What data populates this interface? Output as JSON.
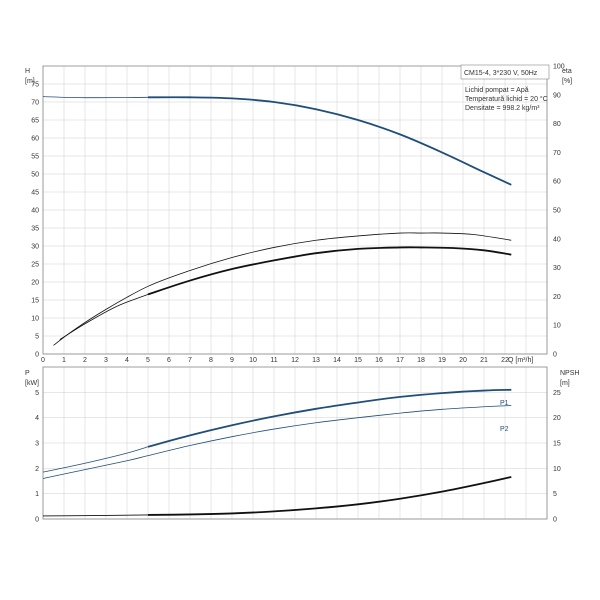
{
  "colors": {
    "blue": "#1f4e79",
    "black": "#111111",
    "grid": "#cfcfcf",
    "frame": "#888888"
  },
  "chart_data": [
    {
      "type": "line",
      "panel": "top",
      "axes": {
        "x_label": "Q [m³/h]",
        "y_left_label": [
          "H",
          "[m]"
        ],
        "y_right_label": [
          "eta",
          "[%]"
        ],
        "xlim": [
          0,
          24
        ],
        "ylim_left": [
          0,
          80
        ],
        "ylim_right": [
          0,
          100
        ],
        "x_ticks": [
          0,
          1,
          2,
          3,
          4,
          5,
          6,
          7,
          8,
          9,
          10,
          11,
          12,
          13,
          14,
          15,
          16,
          17,
          18,
          19,
          20,
          21,
          22
        ],
        "y_left_ticks": [
          0,
          5,
          10,
          15,
          20,
          25,
          30,
          35,
          40,
          45,
          50,
          55,
          60,
          65,
          70,
          75
        ],
        "y_right_ticks": [
          0,
          10,
          20,
          30,
          40,
          50,
          60,
          70,
          80,
          90,
          100
        ],
        "grid": true
      },
      "info_box": {
        "title": "CM15-4, 3*230 V, 50Hz",
        "lines": [
          "Lichid pompat = Apă",
          "Temperatură lichid = 20 °C",
          "Densitate = 998.2 kg/m³"
        ]
      },
      "series": [
        {
          "axis": "left",
          "color": "#1f4e79",
          "thin_until": 5,
          "points": [
            [
              0,
              71.5
            ],
            [
              2,
              71.2
            ],
            [
              5,
              71.3
            ],
            [
              7,
              71.3
            ],
            [
              9,
              71
            ],
            [
              11,
              70
            ],
            [
              13,
              68
            ],
            [
              15,
              65
            ],
            [
              17,
              61
            ],
            [
              19,
              56
            ],
            [
              21,
              50.5
            ],
            [
              22.3,
              47
            ]
          ]
        },
        {
          "axis": "right",
          "color": "#111111",
          "thin_until": 5,
          "points": [
            [
              0.8,
              5
            ],
            [
              2,
              10.5
            ],
            [
              3.5,
              16.5
            ],
            [
              5,
              20.7
            ],
            [
              7,
              25.5
            ],
            [
              9,
              29.5
            ],
            [
              11,
              32.5
            ],
            [
              13,
              35
            ],
            [
              15,
              36.5
            ],
            [
              17,
              37
            ],
            [
              18,
              37
            ],
            [
              19.5,
              36.8
            ],
            [
              21,
              36
            ],
            [
              22.3,
              34.5
            ]
          ]
        },
        {
          "axis": "right",
          "color": "#111111",
          "thin_until": 22.3,
          "points": [
            [
              0.5,
              3
            ],
            [
              1.5,
              8.5
            ],
            [
              3,
              15.5
            ],
            [
              5,
              23.5
            ],
            [
              7,
              29
            ],
            [
              9,
              33.5
            ],
            [
              11,
              37
            ],
            [
              13,
              39.5
            ],
            [
              15,
              41
            ],
            [
              17,
              42
            ],
            [
              18,
              42
            ],
            [
              19,
              42
            ],
            [
              20.5,
              41.5
            ],
            [
              22.3,
              39.5
            ]
          ]
        }
      ]
    },
    {
      "type": "line",
      "panel": "bottom",
      "axes": {
        "y_left_label": [
          "P",
          "[kW]"
        ],
        "y_right_label": [
          "NPSH",
          "[m]"
        ],
        "xlim": [
          0,
          24
        ],
        "ylim_left": [
          0,
          6
        ],
        "ylim_right": [
          0,
          30
        ],
        "y_left_ticks": [
          0,
          1,
          2,
          3,
          4,
          5
        ],
        "y_right_ticks": [
          0,
          5,
          10,
          15,
          20,
          25
        ],
        "grid": true
      },
      "series": [
        {
          "name": "P1",
          "axis": "left",
          "color": "#1f4e79",
          "thin_until": 5,
          "points": [
            [
              0,
              1.85
            ],
            [
              2,
              2.2
            ],
            [
              4,
              2.6
            ],
            [
              5,
              2.85
            ],
            [
              7,
              3.3
            ],
            [
              9,
              3.7
            ],
            [
              11,
              4.05
            ],
            [
              13,
              4.35
            ],
            [
              15,
              4.6
            ],
            [
              17,
              4.82
            ],
            [
              19,
              4.97
            ],
            [
              21,
              5.07
            ],
            [
              22.3,
              5.1
            ]
          ]
        },
        {
          "name": "P2",
          "axis": "left",
          "color": "#1f4e79",
          "thin_until": 22.3,
          "points": [
            [
              0,
              1.6
            ],
            [
              2,
              1.95
            ],
            [
              4,
              2.3
            ],
            [
              5,
              2.5
            ],
            [
              7,
              2.9
            ],
            [
              9,
              3.25
            ],
            [
              11,
              3.55
            ],
            [
              13,
              3.8
            ],
            [
              15,
              4.0
            ],
            [
              17,
              4.18
            ],
            [
              19,
              4.33
            ],
            [
              21,
              4.43
            ],
            [
              22.3,
              4.48
            ]
          ]
        },
        {
          "axis": "right",
          "color": "#111111",
          "thin_until": 5,
          "points": [
            [
              0,
              0.6
            ],
            [
              3,
              0.7
            ],
            [
              5,
              0.8
            ],
            [
              7,
              0.9
            ],
            [
              9,
              1.1
            ],
            [
              11,
              1.5
            ],
            [
              13,
              2.1
            ],
            [
              15,
              2.9
            ],
            [
              17,
              4.0
            ],
            [
              19,
              5.4
            ],
            [
              21,
              7.1
            ],
            [
              22.3,
              8.3
            ]
          ]
        }
      ]
    }
  ]
}
